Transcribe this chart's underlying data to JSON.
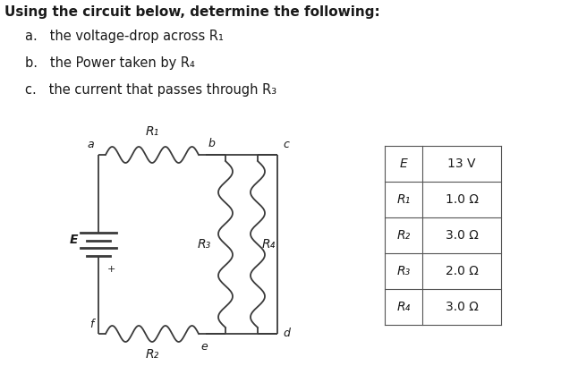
{
  "title_line": "Using the circuit below, determine the following:",
  "items": [
    "a.   the voltage-drop across R₁",
    "b.   the Power taken by R₄",
    "c.   the current that passes through R₃"
  ],
  "table": {
    "col1": [
      "E",
      "R₁",
      "R₂",
      "R₃",
      "R₄"
    ],
    "col2": [
      "13 V",
      "1.0 Ω",
      "3.0 Ω",
      "2.0 Ω",
      "3.0 Ω"
    ]
  },
  "bg_color": "#ffffff",
  "text_color": "#1a1a1a",
  "font_size_title": 11,
  "font_size_items": 10.5,
  "font_size_circuit": 9,
  "font_size_table": 10,
  "line_color": "#3a3a3a",
  "line_width": 1.3
}
